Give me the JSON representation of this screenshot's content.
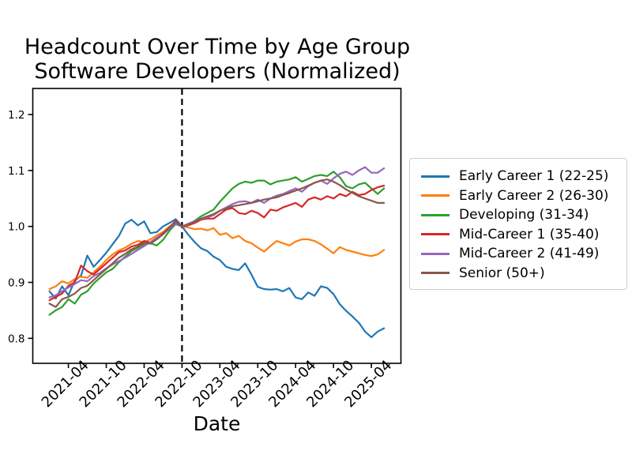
{
  "figure": {
    "title_line1": "Headcount Over Time by Age Group",
    "title_line2": "Software Developers (Normalized)",
    "xlabel": "Date",
    "background": "#ffffff",
    "axis_color": "#000000",
    "legend_border_color": "#cccccc"
  },
  "chart_data": {
    "type": "line",
    "title": "Headcount Over Time by Age Group",
    "subtitle": "Software Developers (Normalized)",
    "xlabel": "Date",
    "ylabel": "",
    "grid": false,
    "legend_position": "outside-right",
    "x_frequency": "monthly",
    "x": [
      "2021-01",
      "2021-02",
      "2021-03",
      "2021-04",
      "2021-05",
      "2021-06",
      "2021-07",
      "2021-08",
      "2021-09",
      "2021-10",
      "2021-11",
      "2021-12",
      "2022-01",
      "2022-02",
      "2022-03",
      "2022-04",
      "2022-05",
      "2022-06",
      "2022-07",
      "2022-08",
      "2022-09",
      "2022-10",
      "2022-11",
      "2022-12",
      "2023-01",
      "2023-02",
      "2023-03",
      "2023-04",
      "2023-05",
      "2023-06",
      "2023-07",
      "2023-08",
      "2023-09",
      "2023-10",
      "2023-11",
      "2023-12",
      "2024-01",
      "2024-02",
      "2024-03",
      "2024-04",
      "2024-05",
      "2024-06",
      "2024-07",
      "2024-08",
      "2024-09",
      "2024-10",
      "2024-11",
      "2024-12",
      "2025-01",
      "2025-02",
      "2025-03",
      "2025-04",
      "2025-05",
      "2025-06"
    ],
    "x_tick_labels": [
      "2021-04",
      "2021-10",
      "2022-04",
      "2022-10",
      "2023-04",
      "2023-10",
      "2024-04",
      "2024-10",
      "2025-04"
    ],
    "y_ticks": [
      0.8,
      0.9,
      1.0,
      1.1,
      1.2
    ],
    "ylim": [
      0.7553,
      1.2466
    ],
    "vline": {
      "month": "2022-10",
      "style": "dashed",
      "color": "#000000"
    },
    "normalized_to": 1.0,
    "series": [
      {
        "name": "Early Career 1 (22-25)",
        "color": "#1f77b4",
        "values": [
          0.884,
          0.871,
          0.893,
          0.877,
          0.903,
          0.912,
          0.948,
          0.928,
          0.94,
          0.953,
          0.968,
          0.983,
          1.005,
          1.012,
          1.002,
          1.009,
          0.988,
          0.99,
          1.0,
          1.006,
          1.013,
          1.0,
          0.985,
          0.972,
          0.961,
          0.956,
          0.946,
          0.94,
          0.928,
          0.924,
          0.922,
          0.934,
          0.914,
          0.892,
          0.888,
          0.887,
          0.888,
          0.884,
          0.89,
          0.873,
          0.87,
          0.882,
          0.876,
          0.893,
          0.89,
          0.879,
          0.861,
          0.849,
          0.839,
          0.828,
          0.812,
          0.802,
          0.812,
          0.818
        ]
      },
      {
        "name": "Early Career 2 (26-30)",
        "color": "#ff7f0e",
        "values": [
          0.888,
          0.893,
          0.902,
          0.898,
          0.906,
          0.91,
          0.908,
          0.918,
          0.928,
          0.94,
          0.95,
          0.957,
          0.962,
          0.969,
          0.974,
          0.972,
          0.977,
          0.984,
          0.99,
          1.0,
          1.006,
          1.0,
          0.998,
          0.995,
          0.996,
          0.993,
          0.997,
          0.985,
          0.988,
          0.979,
          0.983,
          0.974,
          0.97,
          0.962,
          0.955,
          0.965,
          0.974,
          0.97,
          0.966,
          0.973,
          0.977,
          0.977,
          0.974,
          0.968,
          0.96,
          0.952,
          0.963,
          0.958,
          0.955,
          0.952,
          0.949,
          0.947,
          0.95,
          0.958
        ]
      },
      {
        "name": "Developing (31-34)",
        "color": "#2ca02c",
        "values": [
          0.842,
          0.85,
          0.856,
          0.87,
          0.862,
          0.878,
          0.884,
          0.898,
          0.908,
          0.918,
          0.924,
          0.936,
          0.946,
          0.956,
          0.962,
          0.968,
          0.97,
          0.966,
          0.976,
          0.992,
          1.004,
          1.0,
          1.004,
          1.01,
          1.018,
          1.024,
          1.03,
          1.044,
          1.056,
          1.068,
          1.076,
          1.08,
          1.078,
          1.082,
          1.082,
          1.075,
          1.08,
          1.082,
          1.084,
          1.088,
          1.08,
          1.085,
          1.09,
          1.092,
          1.09,
          1.098,
          1.088,
          1.072,
          1.068,
          1.075,
          1.078,
          1.068,
          1.058,
          1.068
        ]
      },
      {
        "name": "Mid-Career 1 (35-40)",
        "color": "#d62728",
        "values": [
          0.868,
          0.874,
          0.88,
          0.894,
          0.9,
          0.93,
          0.92,
          0.914,
          0.924,
          0.934,
          0.944,
          0.954,
          0.957,
          0.964,
          0.967,
          0.974,
          0.971,
          0.979,
          0.988,
          0.998,
          1.01,
          1.0,
          1.002,
          1.006,
          1.012,
          1.014,
          1.014,
          1.022,
          1.03,
          1.033,
          1.024,
          1.022,
          1.028,
          1.024,
          1.016,
          1.03,
          1.028,
          1.034,
          1.038,
          1.042,
          1.035,
          1.048,
          1.052,
          1.048,
          1.054,
          1.05,
          1.058,
          1.054,
          1.062,
          1.056,
          1.058,
          1.065,
          1.07,
          1.073
        ]
      },
      {
        "name": "Mid-Career 2 (41-49)",
        "color": "#9467bd",
        "values": [
          0.873,
          0.877,
          0.884,
          0.891,
          0.897,
          0.904,
          0.902,
          0.911,
          0.917,
          0.925,
          0.932,
          0.938,
          0.944,
          0.951,
          0.958,
          0.965,
          0.972,
          0.98,
          0.986,
          0.996,
          1.005,
          1.0,
          1.005,
          1.009,
          1.013,
          1.016,
          1.02,
          1.028,
          1.034,
          1.04,
          1.044,
          1.045,
          1.042,
          1.048,
          1.042,
          1.05,
          1.055,
          1.058,
          1.063,
          1.068,
          1.062,
          1.072,
          1.078,
          1.082,
          1.076,
          1.086,
          1.094,
          1.098,
          1.092,
          1.1,
          1.106,
          1.096,
          1.096,
          1.104
        ]
      },
      {
        "name": "Senior (50+)",
        "color": "#8c564b",
        "values": [
          0.862,
          0.856,
          0.87,
          0.874,
          0.88,
          0.89,
          0.894,
          0.904,
          0.914,
          0.924,
          0.934,
          0.944,
          0.951,
          0.959,
          0.964,
          0.971,
          0.969,
          0.977,
          0.986,
          0.998,
          1.008,
          1.0,
          1.003,
          1.008,
          1.014,
          1.018,
          1.022,
          1.028,
          1.032,
          1.036,
          1.038,
          1.04,
          1.042,
          1.045,
          1.048,
          1.05,
          1.052,
          1.056,
          1.06,
          1.064,
          1.068,
          1.073,
          1.078,
          1.082,
          1.084,
          1.08,
          1.074,
          1.066,
          1.06,
          1.054,
          1.05,
          1.046,
          1.042,
          1.042
        ]
      }
    ]
  }
}
